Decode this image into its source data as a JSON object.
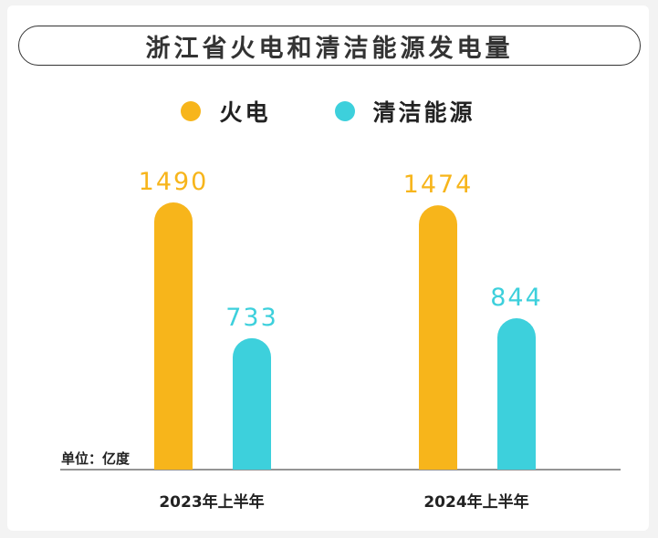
{
  "colors": {
    "thermal": "#f7b51b",
    "clean": "#3dd0dc"
  },
  "chart_data": {
    "type": "bar",
    "title": "浙江省火电和清洁能源发电量",
    "unit_label": "单位：亿度",
    "categories": [
      "2023年上半年",
      "2024年上半年"
    ],
    "series": [
      {
        "name": "火电",
        "values": [
          1490,
          1474
        ]
      },
      {
        "name": "清洁能源",
        "values": [
          733,
          844
        ]
      }
    ],
    "ylim": [
      0,
      1490
    ],
    "grid": false,
    "legend": "top-center"
  }
}
